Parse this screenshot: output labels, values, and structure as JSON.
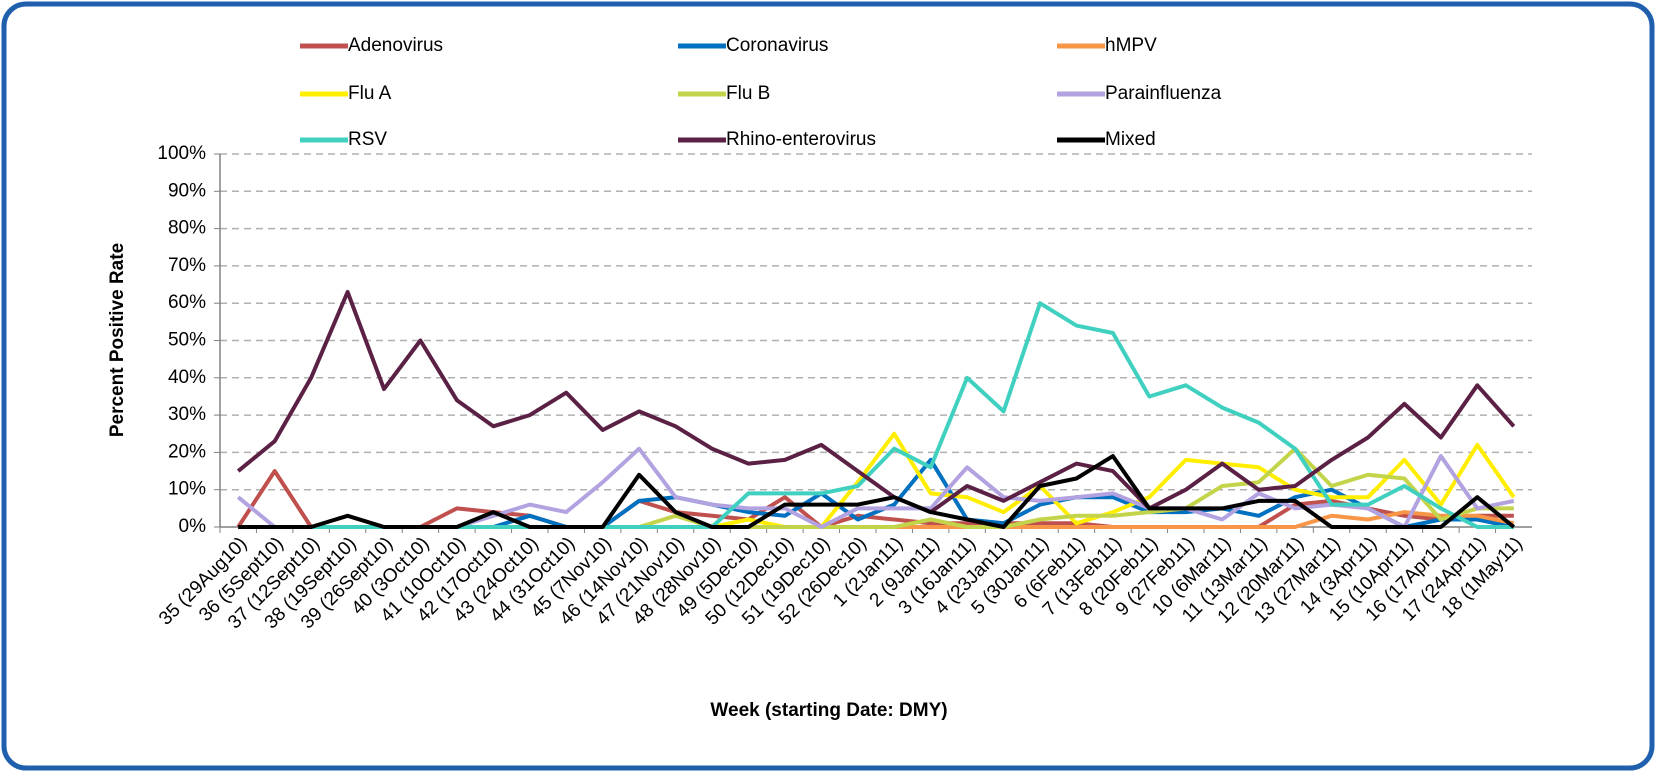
{
  "chart_data": {
    "type": "line",
    "x_label": "Week (starting Date: DMY)",
    "y_label": "Percent Positive Rate",
    "categories": [
      "35 (29Aug10)",
      "36 (5Sept10)",
      "37 (12Sept10)",
      "38 (19Sept10)",
      "39 (26Sept10)",
      "40 (3Oct10)",
      "41 (10Oct10)",
      "42 (17Oct10)",
      "43 (24Oct10)",
      "44 (31Oct10)",
      "45 (7Nov10)",
      "46 (14Nov10)",
      "47 (21Nov10)",
      "48 (28Nov10)",
      "49 (5Dec10)",
      "50 (12Dec10)",
      "51 (19Dec10)",
      "52 (26Dec10)",
      "1 (2Jan11)",
      "2 (9Jan11)",
      "3 (16Jan11)",
      "4 (23Jan11)",
      "5 (30Jan11)",
      "6 (6Feb11)",
      "7 (13Feb11)",
      "8 (20Feb11)",
      "9 (27Feb11)",
      "10 (6Mar11)",
      "11 (13Mar11)",
      "12 (20Mar11)",
      "13 (27Mar11)",
      "14 (3Apr11)",
      "15 (10Apr11)",
      "16 (17Apr11)",
      "17 (24Apr11)",
      "18 (1May11)"
    ],
    "ylim": [
      0,
      100
    ],
    "yticks": [
      {
        "value": 0,
        "label": "0%"
      },
      {
        "value": 10,
        "label": "10%"
      },
      {
        "value": 20,
        "label": "20%"
      },
      {
        "value": 30,
        "label": "30%"
      },
      {
        "value": 40,
        "label": "40%"
      },
      {
        "value": 50,
        "label": "50%"
      },
      {
        "value": 60,
        "label": "60%"
      },
      {
        "value": 70,
        "label": "70%"
      },
      {
        "value": 80,
        "label": "80%"
      },
      {
        "value": 90,
        "label": "90%"
      },
      {
        "value": 100,
        "label": "100%"
      }
    ],
    "grid": true,
    "legend": "top",
    "series": [
      {
        "name": "Adenovirus",
        "color": "#c0504d",
        "values": [
          0,
          15,
          0,
          0,
          0,
          0,
          5,
          4,
          3,
          0,
          0,
          7,
          4,
          3,
          2,
          8,
          0,
          3,
          2,
          1,
          1,
          1,
          1,
          1,
          0,
          0,
          0,
          0,
          0,
          6,
          7,
          5,
          3,
          2,
          3,
          3
        ]
      },
      {
        "name": "Coronavirus",
        "color": "#0070c0",
        "values": [
          0,
          0,
          0,
          0,
          0,
          0,
          0,
          0,
          3,
          0,
          0,
          7,
          8,
          6,
          4,
          3,
          9,
          2,
          6,
          18,
          2,
          1,
          6,
          8,
          8,
          4,
          4,
          5,
          3,
          8,
          10,
          5,
          0,
          2,
          2,
          0
        ]
      },
      {
        "name": "hMPV",
        "color": "#f79646",
        "values": [
          0,
          0,
          0,
          0,
          0,
          0,
          0,
          0,
          0,
          0,
          0,
          0,
          0,
          0,
          0,
          0,
          0,
          0,
          0,
          0,
          0,
          0,
          0,
          0,
          0,
          0,
          0,
          0,
          0,
          0,
          3,
          2,
          4,
          3,
          3,
          1
        ]
      },
      {
        "name": "Flu A",
        "color": "#ffee00",
        "values": [
          0,
          0,
          0,
          0,
          0,
          0,
          0,
          0,
          0,
          0,
          0,
          0,
          0,
          0,
          2,
          0,
          0,
          12,
          25,
          9,
          8,
          4,
          11,
          1,
          4,
          8,
          18,
          17,
          16,
          10,
          8,
          8,
          18,
          6,
          22,
          8
        ]
      },
      {
        "name": "Flu B",
        "color": "#c4d44a",
        "values": [
          0,
          0,
          0,
          0,
          0,
          0,
          0,
          0,
          0,
          0,
          0,
          0,
          3,
          0,
          0,
          0,
          0,
          0,
          0,
          2,
          0,
          0,
          2,
          3,
          3,
          4,
          5,
          11,
          12,
          21,
          11,
          14,
          13,
          2,
          5,
          5
        ]
      },
      {
        "name": "Parainfluenza",
        "color": "#b3a2e0",
        "values": [
          8,
          0,
          0,
          0,
          0,
          0,
          0,
          3,
          6,
          4,
          12,
          21,
          8,
          6,
          5,
          5,
          0,
          5,
          5,
          5,
          16,
          8,
          7,
          8,
          9,
          5,
          5,
          2,
          9,
          5,
          6,
          5,
          0,
          19,
          5,
          7
        ]
      },
      {
        "name": "RSV",
        "color": "#40d0c0",
        "values": [
          0,
          0,
          0,
          0,
          0,
          0,
          0,
          0,
          0,
          0,
          0,
          0,
          0,
          0,
          9,
          9,
          9,
          11,
          21,
          16,
          40,
          31,
          60,
          54,
          52,
          35,
          38,
          32,
          28,
          21,
          6,
          6,
          11,
          5,
          0,
          0
        ]
      },
      {
        "name": "Rhino-enterovirus",
        "color": "#5b2145",
        "values": [
          15,
          23,
          40,
          63,
          37,
          50,
          34,
          27,
          30,
          36,
          26,
          31,
          27,
          21,
          17,
          18,
          22,
          15,
          8,
          4,
          11,
          7,
          12,
          17,
          15,
          5,
          10,
          17,
          10,
          11,
          18,
          24,
          33,
          24,
          38,
          27
        ]
      },
      {
        "name": "Mixed",
        "color": "#000000",
        "values": [
          0,
          0,
          0,
          3,
          0,
          0,
          0,
          4,
          0,
          0,
          0,
          14,
          4,
          0,
          0,
          6,
          6,
          6,
          8,
          4,
          2,
          0,
          11,
          13,
          19,
          5,
          5,
          5,
          7,
          7,
          0,
          0,
          0,
          0,
          8,
          0
        ]
      }
    ]
  }
}
